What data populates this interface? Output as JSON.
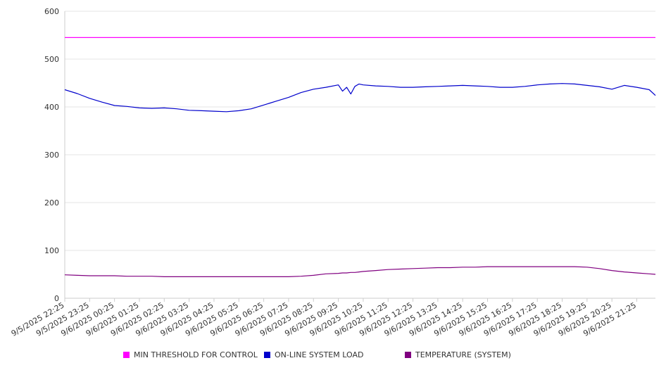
{
  "chart_data": {
    "type": "line",
    "title": "",
    "xlabel": "",
    "ylabel": "",
    "ylim": [
      0,
      600
    ],
    "yticks": [
      0,
      100,
      200,
      300,
      400,
      500,
      600
    ],
    "grid": true,
    "legend_position": "bottom",
    "x_tick_labels": [
      "9/5/2025 22:25",
      "9/5/2025 23:25",
      "9/6/2025 00:25",
      "9/6/2025 01:25",
      "9/6/2025 02:25",
      "9/6/2025 03:25",
      "9/6/2025 04:25",
      "9/6/2025 05:25",
      "9/6/2025 06:25",
      "9/6/2025 07:25",
      "9/6/2025 08:25",
      "9/6/2025 09:25",
      "9/6/2025 10:25",
      "9/6/2025 11:25",
      "9/6/2025 12:25",
      "9/6/2025 13:25",
      "9/6/2025 14:25",
      "9/6/2025 15:25",
      "9/6/2025 16:25",
      "9/6/2025 17:25",
      "9/6/2025 18:25",
      "9/6/2025 19:25",
      "9/6/2025 20:25",
      "9/6/2025 21:25"
    ],
    "x": [
      "9/5/2025 22:25",
      "9/5/2025 22:55",
      "9/5/2025 23:25",
      "9/5/2025 23:55",
      "9/6/2025 00:25",
      "9/6/2025 00:55",
      "9/6/2025 01:25",
      "9/6/2025 01:55",
      "9/6/2025 02:25",
      "9/6/2025 02:55",
      "9/6/2025 03:25",
      "9/6/2025 03:55",
      "9/6/2025 04:25",
      "9/6/2025 04:55",
      "9/6/2025 05:25",
      "9/6/2025 05:55",
      "9/6/2025 06:25",
      "9/6/2025 06:55",
      "9/6/2025 07:25",
      "9/6/2025 07:55",
      "9/6/2025 08:25",
      "9/6/2025 08:55",
      "9/6/2025 09:25",
      "9/6/2025 09:35",
      "9/6/2025 09:45",
      "9/6/2025 09:55",
      "9/6/2025 10:05",
      "9/6/2025 10:15",
      "9/6/2025 10:25",
      "9/6/2025 10:55",
      "9/6/2025 11:25",
      "9/6/2025 11:55",
      "9/6/2025 12:25",
      "9/6/2025 12:55",
      "9/6/2025 13:25",
      "9/6/2025 13:55",
      "9/6/2025 14:25",
      "9/6/2025 14:55",
      "9/6/2025 15:25",
      "9/6/2025 15:55",
      "9/6/2025 16:25",
      "9/6/2025 16:55",
      "9/6/2025 17:25",
      "9/6/2025 17:55",
      "9/6/2025 18:25",
      "9/6/2025 18:55",
      "9/6/2025 19:25",
      "9/6/2025 19:55",
      "9/6/2025 20:25",
      "9/6/2025 20:55",
      "9/6/2025 21:25",
      "9/6/2025 21:55",
      "9/6/2025 22:10"
    ],
    "series": [
      {
        "name": "MIN THRESHOLD FOR CONTROL",
        "color": "#ff00ff",
        "values": [
          545,
          545,
          545,
          545,
          545,
          545,
          545,
          545,
          545,
          545,
          545,
          545,
          545,
          545,
          545,
          545,
          545,
          545,
          545,
          545,
          545,
          545,
          545,
          545,
          545,
          545,
          545,
          545,
          545,
          545,
          545,
          545,
          545,
          545,
          545,
          545,
          545,
          545,
          545,
          545,
          545,
          545,
          545,
          545,
          545,
          545,
          545,
          545,
          545,
          545,
          545,
          545,
          545
        ]
      },
      {
        "name": "ON-LINE SYSTEM LOAD",
        "color": "#0000cc",
        "values": [
          436,
          428,
          418,
          410,
          403,
          401,
          398,
          397,
          398,
          396,
          393,
          392,
          391,
          390,
          392,
          396,
          404,
          412,
          420,
          430,
          437,
          441,
          446,
          433,
          441,
          427,
          443,
          448,
          446,
          444,
          443,
          441,
          441,
          442,
          443,
          444,
          445,
          444,
          443,
          441,
          441,
          443,
          446,
          448,
          449,
          448,
          445,
          442,
          437,
          445,
          441,
          436,
          424
        ]
      },
      {
        "name": "TEMPERATURE (SYSTEM)",
        "color": "#800080",
        "values": [
          49,
          48,
          47,
          47,
          47,
          46,
          46,
          46,
          45,
          45,
          45,
          45,
          45,
          45,
          45,
          45,
          45,
          45,
          45,
          46,
          48,
          51,
          52,
          53,
          53,
          54,
          54,
          55,
          56,
          58,
          60,
          61,
          62,
          63,
          64,
          64,
          65,
          65,
          66,
          66,
          66,
          66,
          66,
          66,
          66,
          66,
          65,
          62,
          58,
          55,
          53,
          51,
          50
        ]
      }
    ]
  }
}
